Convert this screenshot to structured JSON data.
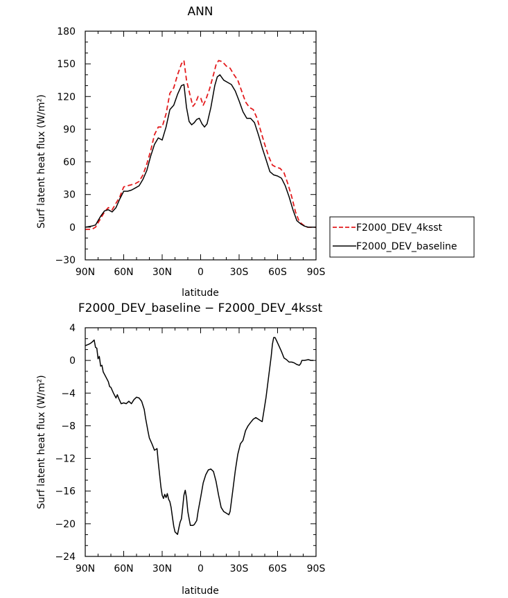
{
  "chart_data": [
    {
      "type": "line",
      "title": "ANN",
      "xlabel": "latitude",
      "ylabel": "Surf latent heat flux (W/m²)",
      "xlim": [
        90,
        -90
      ],
      "ylim": [
        -30,
        180
      ],
      "x_ticks": [
        90,
        60,
        30,
        0,
        -30,
        -60,
        -90
      ],
      "x_tick_labels": [
        "90N",
        "60N",
        "30N",
        "0",
        "30S",
        "60S",
        "90S"
      ],
      "y_ticks": [
        -30,
        0,
        30,
        60,
        90,
        120,
        150,
        180
      ],
      "y_tick_labels": [
        "−30",
        "0",
        "30",
        "60",
        "90",
        "120",
        "150",
        "180"
      ],
      "legend_position": "outside-right",
      "series": [
        {
          "name": "F2000_DEV_4ksst",
          "color": "#e31a1c",
          "dash": "dashed",
          "points": [
            [
              90,
              -2
            ],
            [
              85,
              -2
            ],
            [
              82,
              0
            ],
            [
              78,
              8
            ],
            [
              75,
              14
            ],
            [
              72,
              18
            ],
            [
              69,
              16
            ],
            [
              66,
              22
            ],
            [
              63,
              28
            ],
            [
              60,
              37
            ],
            [
              57,
              38
            ],
            [
              54,
              39
            ],
            [
              51,
              40
            ],
            [
              48,
              42
            ],
            [
              45,
              48
            ],
            [
              42,
              58
            ],
            [
              39,
              70
            ],
            [
              36,
              85
            ],
            [
              33,
              92
            ],
            [
              30,
              92
            ],
            [
              27,
              104
            ],
            [
              24,
              123
            ],
            [
              21,
              128
            ],
            [
              18,
              140
            ],
            [
              15,
              150
            ],
            [
              13,
              153
            ],
            [
              11,
              135
            ],
            [
              8,
              120
            ],
            [
              6,
              111
            ],
            [
              4,
              114
            ],
            [
              2,
              120
            ],
            [
              0,
              119
            ],
            [
              -2,
              112
            ],
            [
              -4,
              117
            ],
            [
              -7,
              127
            ],
            [
              -10,
              140
            ],
            [
              -12,
              149
            ],
            [
              -14,
              153
            ],
            [
              -17,
              152
            ],
            [
              -20,
              148
            ],
            [
              -23,
              146
            ],
            [
              -26,
              140
            ],
            [
              -29,
              135
            ],
            [
              -32,
              125
            ],
            [
              -35,
              115
            ],
            [
              -38,
              110
            ],
            [
              -41,
              108
            ],
            [
              -44,
              100
            ],
            [
              -47,
              88
            ],
            [
              -50,
              76
            ],
            [
              -53,
              65
            ],
            [
              -56,
              57
            ],
            [
              -59,
              55
            ],
            [
              -62,
              54
            ],
            [
              -65,
              50
            ],
            [
              -68,
              40
            ],
            [
              -71,
              28
            ],
            [
              -74,
              14
            ],
            [
              -77,
              5
            ],
            [
              -80,
              2
            ],
            [
              -83,
              0
            ],
            [
              -86,
              0
            ],
            [
              -90,
              0
            ]
          ]
        },
        {
          "name": "F2000_DEV_baseline",
          "color": "#000000",
          "dash": "solid",
          "points": [
            [
              90,
              0
            ],
            [
              85,
              1
            ],
            [
              82,
              2
            ],
            [
              78,
              10
            ],
            [
              75,
              15
            ],
            [
              72,
              16
            ],
            [
              69,
              14
            ],
            [
              66,
              18
            ],
            [
              63,
              26
            ],
            [
              60,
              33
            ],
            [
              57,
              33
            ],
            [
              54,
              34
            ],
            [
              51,
              36
            ],
            [
              48,
              38
            ],
            [
              45,
              44
            ],
            [
              42,
              52
            ],
            [
              39,
              65
            ],
            [
              36,
              76
            ],
            [
              33,
              82
            ],
            [
              30,
              80
            ],
            [
              27,
              92
            ],
            [
              24,
              108
            ],
            [
              21,
              112
            ],
            [
              18,
              122
            ],
            [
              15,
              130
            ],
            [
              13,
              131
            ],
            [
              11,
              110
            ],
            [
              9,
              97
            ],
            [
              7,
              94
            ],
            [
              5,
              96
            ],
            [
              3,
              99
            ],
            [
              1,
              100
            ],
            [
              -1,
              95
            ],
            [
              -3,
              92
            ],
            [
              -5,
              95
            ],
            [
              -8,
              110
            ],
            [
              -11,
              130
            ],
            [
              -13,
              138
            ],
            [
              -15,
              140
            ],
            [
              -18,
              135
            ],
            [
              -21,
              133
            ],
            [
              -24,
              131
            ],
            [
              -27,
              125
            ],
            [
              -30,
              116
            ],
            [
              -33,
              106
            ],
            [
              -36,
              100
            ],
            [
              -39,
              100
            ],
            [
              -42,
              96
            ],
            [
              -45,
              85
            ],
            [
              -48,
              73
            ],
            [
              -51,
              62
            ],
            [
              -54,
              51
            ],
            [
              -57,
              48
            ],
            [
              -60,
              47
            ],
            [
              -63,
              45
            ],
            [
              -66,
              38
            ],
            [
              -69,
              28
            ],
            [
              -72,
              16
            ],
            [
              -75,
              6
            ],
            [
              -78,
              3
            ],
            [
              -81,
              1
            ],
            [
              -84,
              0
            ],
            [
              -87,
              0
            ],
            [
              -90,
              0
            ]
          ]
        }
      ]
    },
    {
      "type": "line",
      "title": "F2000_DEV_baseline − F2000_DEV_4ksst",
      "xlabel": "latitude",
      "ylabel": "Surf latent heat flux (W/m²)",
      "xlim": [
        90,
        -90
      ],
      "ylim": [
        -24,
        4
      ],
      "x_ticks": [
        90,
        60,
        30,
        0,
        -30,
        -60,
        -90
      ],
      "x_tick_labels": [
        "90N",
        "60N",
        "30N",
        "0",
        "30S",
        "60S",
        "90S"
      ],
      "y_ticks": [
        -24,
        -20,
        -16,
        -12,
        -8,
        -4,
        0,
        4
      ],
      "y_tick_labels": [
        "−24",
        "−20",
        "−16",
        "−12",
        "−8",
        "−4",
        "0",
        "4"
      ],
      "series": [
        {
          "color": "#000000",
          "dash": "solid",
          "points": [
            [
              90,
              1.8
            ],
            [
              87,
              2
            ],
            [
              85,
              2.2
            ],
            [
              83,
              2.5
            ],
            [
              82,
              1.6
            ],
            [
              81,
              1.5
            ],
            [
              80,
              0.2
            ],
            [
              79,
              0.5
            ],
            [
              78,
              -0.7
            ],
            [
              77,
              -0.6
            ],
            [
              76,
              -1.4
            ],
            [
              74,
              -2
            ],
            [
              72,
              -2.6
            ],
            [
              71,
              -3.2
            ],
            [
              70,
              -3.3
            ],
            [
              68,
              -4
            ],
            [
              66,
              -4.6
            ],
            [
              65,
              -4.2
            ],
            [
              64,
              -4.6
            ],
            [
              62,
              -5.3
            ],
            [
              60,
              -5.2
            ],
            [
              58,
              -5.3
            ],
            [
              56,
              -5
            ],
            [
              54,
              -5.3
            ],
            [
              52,
              -4.8
            ],
            [
              50,
              -4.5
            ],
            [
              48,
              -4.6
            ],
            [
              46,
              -5
            ],
            [
              44,
              -6
            ],
            [
              43,
              -7
            ],
            [
              41,
              -8.7
            ],
            [
              40,
              -9.5
            ],
            [
              38,
              -10.2
            ],
            [
              36,
              -11
            ],
            [
              34,
              -10.8
            ],
            [
              33,
              -12.5
            ],
            [
              32,
              -14
            ],
            [
              31,
              -15.5
            ],
            [
              30,
              -16.5
            ],
            [
              29,
              -16.9
            ],
            [
              28,
              -16.4
            ],
            [
              27,
              -16.8
            ],
            [
              26,
              -16.3
            ],
            [
              25,
              -17
            ],
            [
              24,
              -17.3
            ],
            [
              23,
              -18
            ],
            [
              22,
              -19.2
            ],
            [
              21,
              -20.3
            ],
            [
              20,
              -21
            ],
            [
              18,
              -21.3
            ],
            [
              17,
              -20.5
            ],
            [
              16,
              -19.8
            ],
            [
              15,
              -19.4
            ],
            [
              14,
              -18
            ],
            [
              13,
              -16.5
            ],
            [
              12,
              -15.9
            ],
            [
              11,
              -16.8
            ],
            [
              10,
              -18.5
            ],
            [
              9,
              -19.4
            ],
            [
              8,
              -20.2
            ],
            [
              6,
              -20.2
            ],
            [
              5,
              -20.1
            ],
            [
              3,
              -19.6
            ],
            [
              2,
              -18.5
            ],
            [
              0,
              -16.8
            ],
            [
              -2,
              -15
            ],
            [
              -4,
              -14
            ],
            [
              -6,
              -13.4
            ],
            [
              -8,
              -13.3
            ],
            [
              -10,
              -13.6
            ],
            [
              -12,
              -14.8
            ],
            [
              -14,
              -16.5
            ],
            [
              -16,
              -18
            ],
            [
              -18,
              -18.5
            ],
            [
              -20,
              -18.7
            ],
            [
              -22,
              -18.9
            ],
            [
              -23,
              -18.5
            ],
            [
              -25,
              -16
            ],
            [
              -27,
              -13.5
            ],
            [
              -29,
              -11.5
            ],
            [
              -31,
              -10.2
            ],
            [
              -33,
              -9.8
            ],
            [
              -35,
              -8.6
            ],
            [
              -37,
              -8
            ],
            [
              -39,
              -7.6
            ],
            [
              -41,
              -7.2
            ],
            [
              -43,
              -7
            ],
            [
              -45,
              -7.2
            ],
            [
              -47,
              -7.4
            ],
            [
              -48,
              -7.5
            ],
            [
              -49,
              -6.5
            ],
            [
              -51,
              -4.5
            ],
            [
              -53,
              -2
            ],
            [
              -55,
              0.5
            ],
            [
              -56,
              2
            ],
            [
              -57,
              2.8
            ],
            [
              -58,
              2.8
            ],
            [
              -59,
              2.5
            ],
            [
              -61,
              1.8
            ],
            [
              -63,
              1.1
            ],
            [
              -65,
              0.3
            ],
            [
              -67,
              0.1
            ],
            [
              -69,
              -0.2
            ],
            [
              -71,
              -0.2
            ],
            [
              -73,
              -0.3
            ],
            [
              -75,
              -0.5
            ],
            [
              -77,
              -0.6
            ],
            [
              -78,
              -0.4
            ],
            [
              -79,
              0
            ],
            [
              -81,
              0
            ],
            [
              -84,
              0.1
            ],
            [
              -86,
              0
            ],
            [
              -88,
              0
            ]
          ]
        }
      ]
    }
  ]
}
